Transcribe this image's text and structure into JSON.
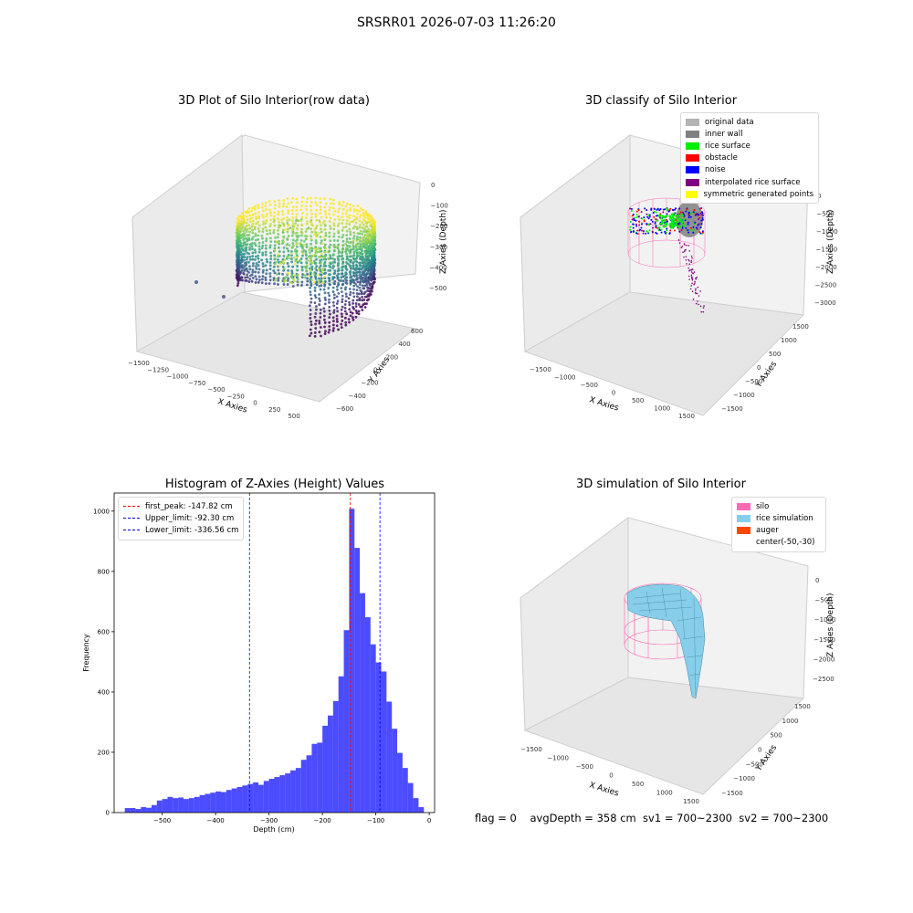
{
  "suptitle": "SRSRR01 2026-07-03 11:26:20",
  "footer": "flag = 0    avgDepth = 358 cm  sv1 = 700~2300  sv2 = 700~2300",
  "chart_data": [
    {
      "type": "scatter3d",
      "title": "3D Plot of Silo Interior(row data)",
      "xlabel": "X Axies",
      "ylabel": "Y Axies",
      "zlabel": "Z Axies (Depth)",
      "xticks": [
        "−1500",
        "−1250",
        "−1000",
        "−750",
        "−500",
        "−250",
        "0",
        "250",
        "500"
      ],
      "yticks": [
        "−600",
        "−400",
        "−200",
        "0",
        "200",
        "400",
        "600"
      ],
      "zticks": [
        "0",
        "−100",
        "−200",
        "−300",
        "−400",
        "−500"
      ],
      "colormap": "viridis"
    },
    {
      "type": "scatter3d",
      "title": "3D classify of Silo Interior",
      "xlabel": "X Axies",
      "ylabel": "Y Axies",
      "zlabel": "Z Axies (Depth)",
      "xticks": [
        "−1500",
        "−1000",
        "−500",
        "0",
        "500",
        "1000",
        "1500"
      ],
      "yticks": [
        "−1500",
        "−1000",
        "−500",
        "0",
        "500",
        "1000",
        "1500"
      ],
      "zticks": [
        "0",
        "−500",
        "−1000",
        "−1500",
        "−2000",
        "−2500",
        "−3000"
      ],
      "legend": [
        {
          "label": "original data",
          "color": "#b3b3b3"
        },
        {
          "label": "inner wall",
          "color": "#808080"
        },
        {
          "label": "rice surface",
          "color": "#00ee00"
        },
        {
          "label": "obstacle",
          "color": "#ff0000"
        },
        {
          "label": "noise",
          "color": "#0000ff"
        },
        {
          "label": "interpolated rice surface",
          "color": "#800080"
        },
        {
          "label": "symmetric generated points",
          "color": "#ffff00"
        }
      ]
    },
    {
      "type": "bar",
      "title": "Histogram of Z-Axies (Height) Values",
      "xlabel": "Depth (cm)",
      "ylabel": "Frequency",
      "xlim": [
        -590,
        10
      ],
      "ylim": [
        0,
        1060
      ],
      "xticks": [
        "−500",
        "−400",
        "−300",
        "−200",
        "−100",
        "0"
      ],
      "yticks": [
        "0",
        "200",
        "400",
        "600",
        "800",
        "1000"
      ],
      "bin_width": 10,
      "bin_starts": [
        -570,
        -560,
        -550,
        -540,
        -530,
        -520,
        -510,
        -500,
        -490,
        -480,
        -470,
        -460,
        -450,
        -440,
        -430,
        -420,
        -410,
        -400,
        -390,
        -380,
        -370,
        -360,
        -350,
        -340,
        -330,
        -320,
        -310,
        -300,
        -290,
        -280,
        -270,
        -260,
        -250,
        -240,
        -230,
        -220,
        -210,
        -200,
        -190,
        -180,
        -170,
        -160,
        -150,
        -140,
        -130,
        -120,
        -110,
        -100,
        -90,
        -80,
        -70,
        -60,
        -50,
        -40,
        -30,
        -20
      ],
      "values": [
        15,
        15,
        12,
        18,
        16,
        25,
        40,
        45,
        52,
        48,
        50,
        45,
        48,
        52,
        58,
        62,
        66,
        70,
        68,
        75,
        80,
        85,
        90,
        95,
        100,
        92,
        105,
        112,
        118,
        124,
        130,
        140,
        148,
        175,
        190,
        228,
        232,
        288,
        322,
        370,
        452,
        605,
        1008,
        878,
        728,
        648,
        558,
        498,
        468,
        368,
        278,
        198,
        148,
        98,
        48,
        18
      ],
      "color": "#0000ff",
      "vlines": [
        {
          "label": "first_peak: -147.82 cm",
          "value": -147.82,
          "color": "#ff0000"
        },
        {
          "label": "Upper_limit: -92.30 cm",
          "value": -92.3,
          "color": "#0000ff"
        },
        {
          "label": "Lower_limit: -336.56 cm",
          "value": -336.56,
          "color": "#0000ff"
        }
      ]
    },
    {
      "type": "surface3d",
      "title": "3D simulation of Silo Interior",
      "xlabel": "X Axies",
      "ylabel": "Y Axies",
      "zlabel": "Z Axies (Depth)",
      "xticks": [
        "−1500",
        "−1000",
        "−500",
        "0",
        "500",
        "1000",
        "1500"
      ],
      "yticks": [
        "−1500",
        "−1000",
        "−500",
        "0",
        "500",
        "1000",
        "1500"
      ],
      "zticks": [
        "0",
        "−500",
        "−1000",
        "−1500",
        "−2000",
        "−2500"
      ],
      "legend": [
        {
          "label": "silo",
          "color": "#ff69b4"
        },
        {
          "label": "rice simulation",
          "color": "#87ceeb"
        },
        {
          "label": "auger",
          "color": "#ff4500"
        },
        {
          "label": "center(-50,-30)",
          "color": ""
        }
      ]
    }
  ]
}
